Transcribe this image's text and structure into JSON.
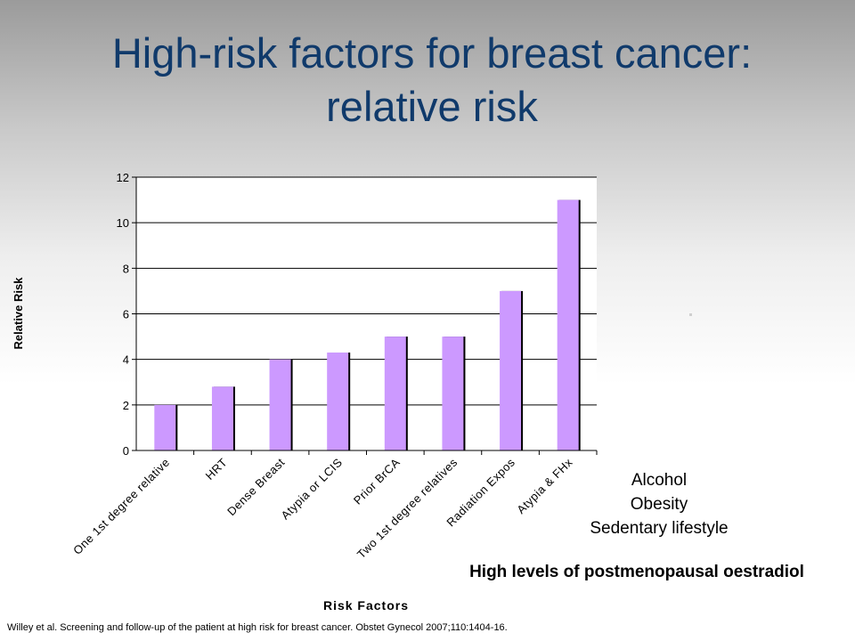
{
  "slide": {
    "title_line1": "High-risk factors for breast cancer:",
    "title_line2": "relative risk",
    "other_factors": [
      "Alcohol",
      "Obesity",
      "Sedentary lifestyle"
    ],
    "highlight": "High levels of postmenopausal oestradiol",
    "citation": "Willey et al.  Screening and follow-up of the patient at high risk for breast cancer.  Obstet Gynecol 2007;110:1404-16."
  },
  "chart_data": {
    "type": "bar",
    "categories": [
      "One 1st degree relative",
      "HRT",
      "Dense Breast",
      "Atypia or LCIS",
      "Prior BrCA",
      "Two 1st degree relatives",
      "Radiation Expos",
      "Atypia & FHx"
    ],
    "values": [
      2,
      2.8,
      4,
      4.3,
      5,
      5,
      7,
      11
    ],
    "xlabel": "Risk Factors",
    "ylabel": "Relative Risk",
    "ylim": [
      0,
      12
    ],
    "yticks": [
      0,
      2,
      4,
      6,
      8,
      10,
      12
    ],
    "grid": true,
    "legend": false,
    "colors": {
      "bar": "#cc99ff",
      "bar_shadow": "#000000",
      "grid": "#000000",
      "plot_bg": "#ffffff"
    }
  }
}
